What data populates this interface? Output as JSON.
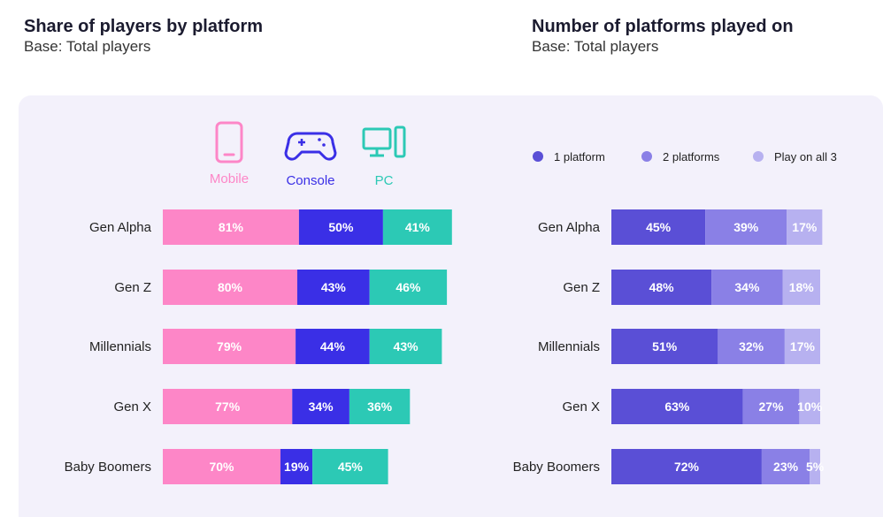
{
  "left_heading": {
    "title": "Share of players by platform",
    "subtitle": "Base: Total players"
  },
  "right_heading": {
    "title": "Number of platforms played on",
    "subtitle": "Base: Total players"
  },
  "colors": {
    "mobile": "#fd86c7",
    "console": "#3a2fe6",
    "pc": "#2cc9b5",
    "one_platform": "#5a4fd6",
    "two_platforms": "#8a80e6",
    "all_three": "#b7b1f0",
    "panel": "#f3f1fb"
  },
  "chart_data": [
    {
      "type": "bar",
      "orientation": "horizontal",
      "stacked": true,
      "categories": [
        "Gen Alpha",
        "Gen Z",
        "Millennials",
        "Gen X",
        "Baby Boomers"
      ],
      "series": [
        {
          "name": "Mobile",
          "icon": "mobile-phone-icon",
          "values": [
            81,
            80,
            79,
            77,
            70
          ]
        },
        {
          "name": "Console",
          "icon": "gamepad-icon",
          "values": [
            50,
            43,
            44,
            34,
            19
          ]
        },
        {
          "name": "PC",
          "icon": "desktop-pc-icon",
          "values": [
            41,
            46,
            43,
            36,
            45
          ]
        }
      ],
      "legend": "top"
    },
    {
      "type": "bar",
      "orientation": "horizontal",
      "stacked": true,
      "categories": [
        "Gen Alpha",
        "Gen Z",
        "Millennials",
        "Gen X",
        "Baby Boomers"
      ],
      "series": [
        {
          "name": "1 platform",
          "values": [
            45,
            48,
            51,
            63,
            72
          ]
        },
        {
          "name": "2 platforms",
          "values": [
            39,
            34,
            32,
            27,
            23
          ]
        },
        {
          "name": "Play on all 3",
          "values": [
            17,
            18,
            17,
            10,
            5
          ]
        }
      ],
      "legend": "top"
    }
  ]
}
